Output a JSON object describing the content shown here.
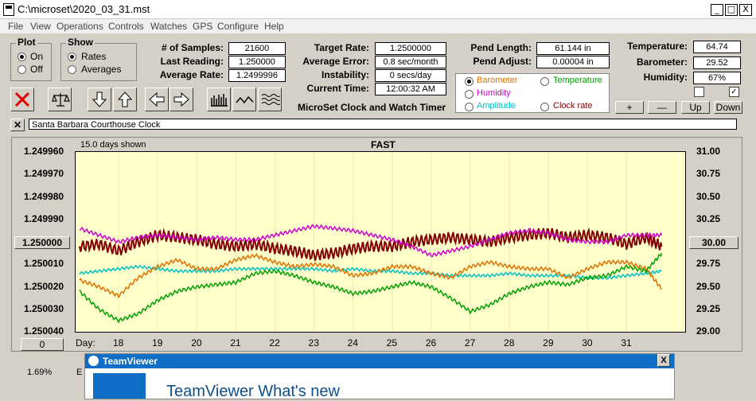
{
  "window": {
    "title": "C:\\microset\\2020_03_31.mst",
    "min": "_",
    "max": "□",
    "close": "X"
  },
  "menu": [
    "File",
    "View",
    "Operations",
    "Controls",
    "Watches",
    "GPS",
    "Configure",
    "Help"
  ],
  "plot_group": {
    "title": "Plot",
    "on": "On",
    "off": "Off",
    "selected": "On"
  },
  "show_group": {
    "title": "Show",
    "rates": "Rates",
    "averages": "Averages",
    "selected": "Rates"
  },
  "stats1": {
    "samples_label": "# of Samples:",
    "samples": "21600",
    "last_label": "Last Reading:",
    "last": "1.250000",
    "avg_rate_label": "Average Rate:",
    "avg_rate": "1.2499996"
  },
  "stats2": {
    "target_label": "Target Rate:",
    "target": "1.2500000",
    "avg_err_label": "Average Error:",
    "avg_err": "0.8 sec/month",
    "instab_label": "Instability:",
    "instab": "0 secs/day",
    "time_label": "Current Time:",
    "time": "12:00:32 AM",
    "app_name": "MicroSet Clock and Watch Timer"
  },
  "stats3": {
    "pend_len_label": "Pend Length:",
    "pend_len": "61.144 in",
    "pend_adj_label": "Pend Adjust:",
    "pend_adj": "0.00004 in"
  },
  "sensors": {
    "temp_label": "Temperature:",
    "temp": "64.74",
    "baro_label": "Barometer:",
    "baro": "29.52",
    "hum_label": "Humidity:",
    "hum": "67%"
  },
  "overlay": {
    "barometer": "Barometer",
    "temperature": "Temperature",
    "humidity": "Humidity",
    "amplitude": "Amplitude",
    "clock_rate": "Clock rate",
    "selected": "Barometer",
    "colors": {
      "barometer": "#e07000",
      "temperature": "#00a000",
      "humidity": "#d000d0",
      "amplitude": "#00c0c0",
      "clock_rate": "#800000"
    }
  },
  "right_buttons": {
    "plus": "+",
    "minus": "—",
    "up": "Up",
    "down": "Down"
  },
  "clock_name": "Santa Barbara Courthouse Clock",
  "chart": {
    "days_shown": "15.0 days shown",
    "title": "FAST",
    "y_left_box": "1.250000",
    "y_right_box": "30.00",
    "x_prefix": "Day:",
    "bottom_left_box": "0",
    "percent": "1.69%"
  },
  "teamviewer": {
    "title": "TeamViewer",
    "heading": "TeamViewer What's new",
    "close": "X"
  },
  "chart_data": {
    "type": "line",
    "title": "FAST",
    "x": [
      17.0,
      17.5,
      18.0,
      18.5,
      19.0,
      19.5,
      20.0,
      20.5,
      21.0,
      21.5,
      22.0,
      22.5,
      23.0,
      23.5,
      24.0,
      24.5,
      25.0,
      25.5,
      26.0,
      26.5,
      27.0,
      27.5,
      28.0,
      28.5,
      29.0,
      29.5,
      30.0,
      30.5,
      31.0,
      31.5,
      31.9
    ],
    "xlim": [
      16.9,
      32.5
    ],
    "x_ticks": [
      "18",
      "19",
      "20",
      "21",
      "22",
      "23",
      "24",
      "25",
      "26",
      "27",
      "28",
      "29",
      "30",
      "31"
    ],
    "y_left_ticks": [
      "1.249960",
      "1.249970",
      "1.249980",
      "1.249990",
      "1.250000",
      "1.250010",
      "1.250020",
      "1.250030",
      "1.250040"
    ],
    "y_left_range": [
      1.24996,
      1.25004
    ],
    "y_right_ticks": [
      "31.00",
      "30.75",
      "30.50",
      "30.25",
      "30.00",
      "29.75",
      "29.50",
      "29.25",
      "29.00"
    ],
    "y_right_range": [
      29.0,
      31.0
    ],
    "series": [
      {
        "name": "Clock rate",
        "color": "#800000",
        "axis": "left",
        "values": [
          1.250002,
          1.250001,
          1.250004,
          1.25,
          1.249997,
          1.249998,
          1.249999,
          1.250001,
          1.250002,
          1.250001,
          1.250003,
          1.250004,
          1.250006,
          1.250005,
          1.250003,
          1.250002,
          1.250002,
          1.25,
          1.249999,
          1.249998,
          1.249999,
          1.25,
          1.249998,
          1.249997,
          1.249996,
          1.249998,
          1.249997,
          1.249998,
          1.250001,
          1.249998,
          1.250002
        ]
      },
      {
        "name": "Humidity",
        "color": "#d000d0",
        "axis": "left",
        "values": [
          1.249994,
          1.249997,
          1.25,
          1.249998,
          1.249997,
          1.249998,
          1.249999,
          1.249998,
          1.249999,
          1.249999,
          1.249997,
          1.249995,
          1.249993,
          1.249994,
          1.249995,
          1.249997,
          1.249999,
          1.250002,
          1.250006,
          1.250004,
          1.250002,
          1.249999,
          1.249996,
          1.249995,
          1.249996,
          1.249999,
          1.25,
          1.25,
          1.249997,
          1.249997,
          1.249997
        ]
      },
      {
        "name": "Amplitude",
        "color": "#00c0c0",
        "axis": "left",
        "values": [
          1.250014,
          1.250013,
          1.250012,
          1.250011,
          1.250012,
          1.250013,
          1.250013,
          1.250013,
          1.250012,
          1.250012,
          1.250012,
          1.250012,
          1.250012,
          1.250013,
          1.250012,
          1.250013,
          1.250013,
          1.250014,
          1.250014,
          1.250015,
          1.250015,
          1.250015,
          1.250014,
          1.250015,
          1.250015,
          1.250015,
          1.250016,
          1.250016,
          1.250015,
          1.250014,
          1.250013
        ]
      },
      {
        "name": "Barometer",
        "color": "#e07000",
        "axis": "left",
        "values": [
          1.250017,
          1.25002,
          1.250024,
          1.250016,
          1.250011,
          1.250008,
          1.250012,
          1.250012,
          1.250008,
          1.250006,
          1.250009,
          1.250011,
          1.25001,
          1.250011,
          1.250015,
          1.250014,
          1.250011,
          1.250011,
          1.250014,
          1.250016,
          1.250011,
          1.250009,
          1.250011,
          1.250012,
          1.250012,
          1.250016,
          1.250012,
          1.250009,
          1.250009,
          1.250012,
          1.250021
        ]
      },
      {
        "name": "Temperature",
        "color": "#00a000",
        "axis": "left",
        "values": [
          1.250022,
          1.25003,
          1.250035,
          1.250032,
          1.250026,
          1.250022,
          1.25002,
          1.250019,
          1.250018,
          1.250014,
          1.250013,
          1.250015,
          1.250018,
          1.25002,
          1.250023,
          1.250022,
          1.25002,
          1.250018,
          1.25002,
          1.250025,
          1.250031,
          1.250028,
          1.250023,
          1.25002,
          1.250018,
          1.250019,
          1.250016,
          1.250015,
          1.250011,
          1.250013,
          1.250005
        ]
      }
    ]
  }
}
